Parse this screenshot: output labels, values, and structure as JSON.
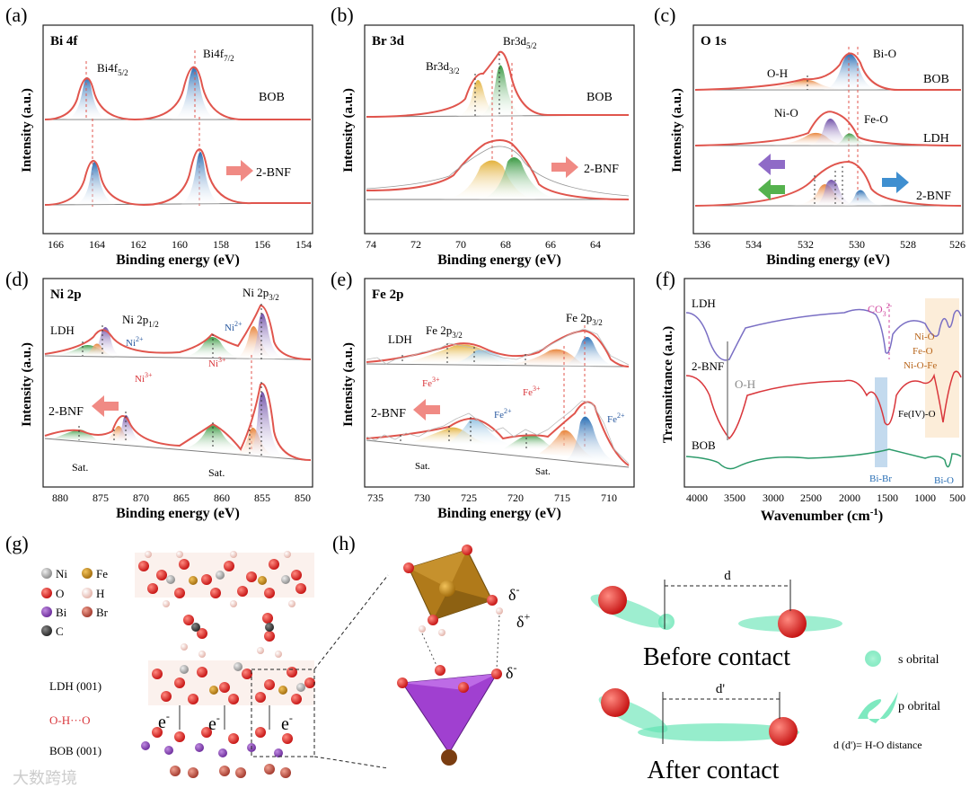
{
  "colors": {
    "fit": "#e0554d",
    "envelope": "#d9363b",
    "baseline": "#7d7d7d",
    "blue": "#2a6fb5",
    "green": "#3a9a43",
    "orange": "#e8843a",
    "purple": "#7050a8",
    "yellow": "#e3b23c",
    "arrow": "#f08a84"
  },
  "watermark": "大数跨境",
  "panels": {
    "a": {
      "label": "(a)",
      "title": "Bi 4f",
      "xlabel": "Binding energy (eV)",
      "ylabel": "Intensity (a.u.)",
      "ticks": [
        "166",
        "164",
        "162",
        "160",
        "158",
        "156",
        "154"
      ],
      "peak1": "Bi4f",
      "peak1_sub": "5/2",
      "peak2": "Bi4f",
      "peak2_sub": "7/2",
      "top": "BOB",
      "bottom": "2-BNF"
    },
    "b": {
      "label": "(b)",
      "title": "Br 3d",
      "xlabel": "Binding energy (eV)",
      "ylabel": "Intensity (a.u.)",
      "ticks": [
        "74",
        "72",
        "70",
        "68",
        "66",
        "64"
      ],
      "peak1": "Br3d",
      "peak1_sub": "3/2",
      "peak2": "Br3d",
      "peak2_sub": "5/2",
      "top": "BOB",
      "bottom": "2-BNF"
    },
    "c": {
      "label": "(c)",
      "title": "O 1s",
      "xlabel": "Binding energy (eV)",
      "ylabel": "Intensity (a.u.)",
      "ticks": [
        "536",
        "534",
        "532",
        "530",
        "528",
        "526"
      ],
      "oh": "O-H",
      "bio": "Bi-O",
      "nio": "Ni-O",
      "feo": "Fe-O",
      "s1": "BOB",
      "s2": "LDH",
      "s3": "2-BNF"
    },
    "d": {
      "label": "(d)",
      "title": "Ni 2p",
      "xlabel": "Binding energy (eV)",
      "ylabel": "Intensity (a.u.)",
      "ticks": [
        "880",
        "875",
        "870",
        "865",
        "860",
        "855",
        "850"
      ],
      "ldh": "LDH",
      "bnf": "2-BNF",
      "p12": "Ni 2p",
      "p12_sub": "1/2",
      "p32": "Ni 2p",
      "p32_sub": "3/2",
      "ni2": "Ni",
      "ni2_sup": "2+",
      "ni3": "Ni",
      "ni3_sup": "3+",
      "sat": "Sat."
    },
    "e": {
      "label": "(e)",
      "title": "Fe 2p",
      "xlabel": "Binding energy (eV)",
      "ylabel": "Intensity (a.u.)",
      "ticks": [
        "735",
        "730",
        "725",
        "720",
        "715",
        "710"
      ],
      "ldh": "LDH",
      "bnf": "2-BNF",
      "pa": "Fe 2p",
      "pa_sub": "3/2",
      "pb": "Fe 2p",
      "pb_sub": "3/2",
      "fe3": "Fe",
      "fe3_sup": "3+",
      "fe2": "Fe",
      "fe2_sup": "2+",
      "sat": "Sat."
    },
    "f": {
      "label": "(f)",
      "xlabel": "Wavenumber (cm",
      "xlabel_sup": "-1",
      "xlabel_end": ")",
      "ylabel": "Transmittance (a.u.)",
      "ticks": [
        "4000",
        "3500",
        "3000",
        "2500",
        "2000",
        "1500",
        "1000",
        "500"
      ],
      "ldh": "LDH",
      "bnf": "2-BNF",
      "bob": "BOB",
      "oh": "O-H",
      "co3": "CO",
      "co3_sup": "2-",
      "co3_sub": "3",
      "nio": "Ni-O",
      "feo": "Fe-O",
      "niofe": "Ni-O-Fe",
      "feivo": "Fe(IV)-O",
      "bibr": "Bi-Br",
      "bio": "Bi-O"
    },
    "g": {
      "label": "(g)",
      "legend": [
        "Ni",
        "Fe",
        "O",
        "H",
        "Bi",
        "Br",
        "C"
      ],
      "ldh": "LDH (001)",
      "hbond": "O-H···O",
      "bob": "BOB (001)",
      "e": "e",
      "e_sup": "-"
    },
    "h": {
      "label": "(h)",
      "dminus": "δ",
      "dminus_sup": "-",
      "dplus": "δ",
      "dplus_sup": "+",
      "d": "d",
      "dp": "d'",
      "before": "Before contact",
      "after": "After contact",
      "s": "s obrital",
      "p": "p obrital",
      "note": "d (d')= H-O distance"
    }
  }
}
